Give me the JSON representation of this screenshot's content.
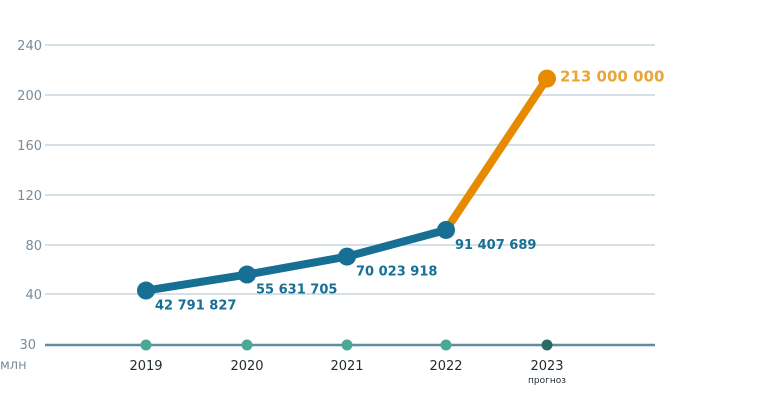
{
  "chart_data": {
    "type": "line",
    "ylabel": "млн",
    "y_ticks": [
      "240",
      "200",
      "160",
      "120",
      "80",
      "40",
      "30"
    ],
    "x_ticks": [
      "2019",
      "2020",
      "2021",
      "2022",
      "2023"
    ],
    "forecast_note": "прогноз",
    "series": [
      {
        "values": [
          42.791827,
          55.631705,
          70.023918,
          91.407689
        ],
        "labels": [
          "42 791 827",
          "55 631 705",
          "70 023 918",
          "91 407 689"
        ],
        "color": "#176f94"
      },
      {
        "values": [
          91.407689,
          213.0
        ],
        "labels": [
          "",
          "213 000 000"
        ],
        "color": "#e68a00"
      }
    ],
    "colors": {
      "grid": "#d5e0e6",
      "axis": "#5f8ea3",
      "axis_dot": "#4aa897",
      "axis_dot_forecast": "#2b6b66",
      "forecast_label": "#e8a53a"
    }
  }
}
